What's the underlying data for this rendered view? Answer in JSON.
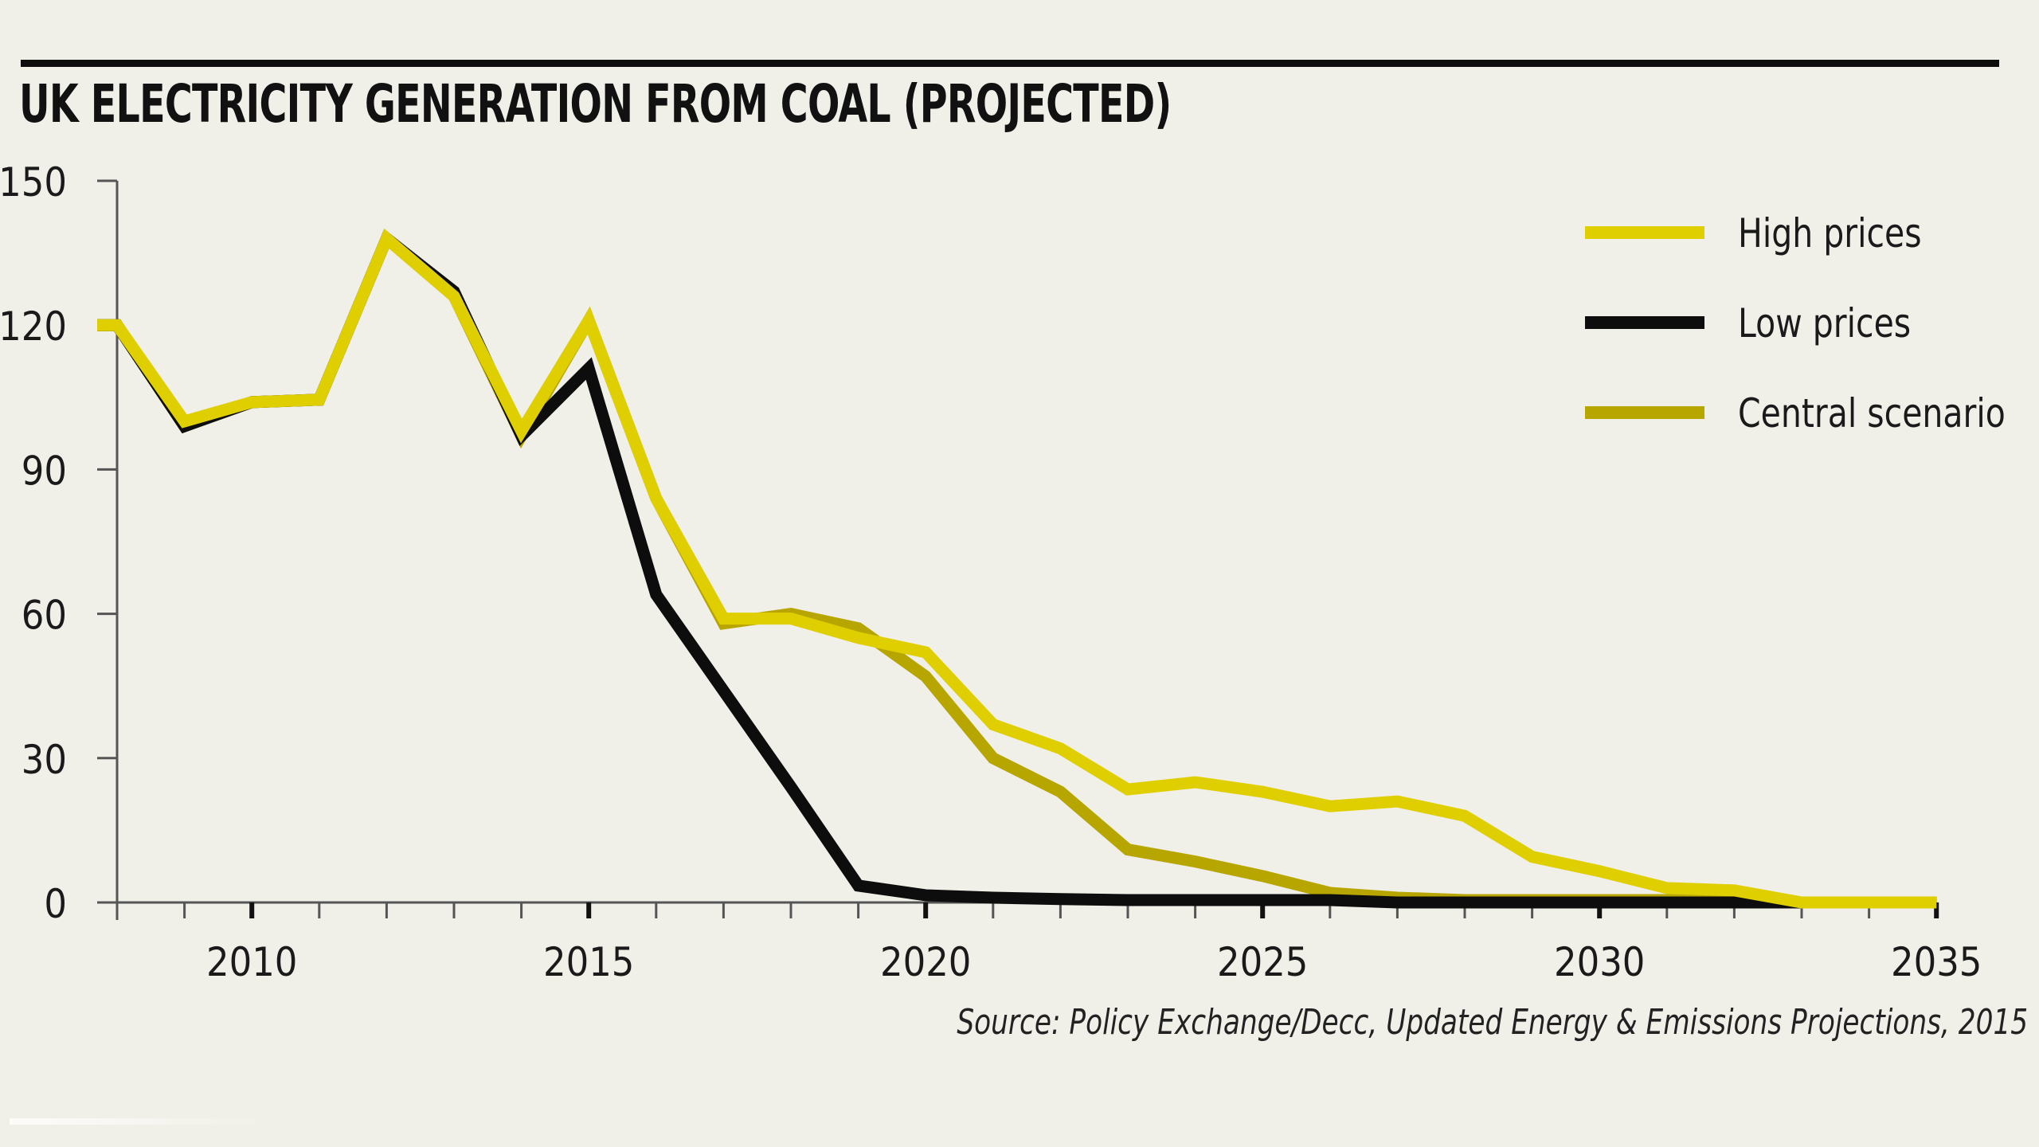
{
  "title": "UK ELECTRICITY GENERATION FROM COAL (PROJECTED)",
  "source": "Source: Policy Exchange/Decc, Updated Energy & Emissions Projections, 2015",
  "colors": {
    "background": "#f0efe8",
    "high_prices": "#e0cf00",
    "low_prices": "#0d0d0d",
    "central_scenario": "#b8a600",
    "axis": "#555555"
  },
  "chart_data": {
    "type": "line",
    "title": "UK ELECTRICITY GENERATION FROM COAL (PROJECTED)",
    "xlabel": "",
    "ylabel": "",
    "xlim": [
      2008,
      2035
    ],
    "ylim": [
      0,
      150
    ],
    "grid": false,
    "legend_position": "top-right",
    "x": [
      2008,
      2009,
      2010,
      2011,
      2012,
      2013,
      2014,
      2015,
      2016,
      2017,
      2018,
      2019,
      2020,
      2021,
      2022,
      2023,
      2024,
      2025,
      2026,
      2027,
      2028,
      2029,
      2030,
      2031,
      2032,
      2033,
      2034,
      2035
    ],
    "x_tick_labels": [
      "2010",
      "2015",
      "2020",
      "2025",
      "2030",
      "2035"
    ],
    "x_tick_values": [
      2010,
      2015,
      2020,
      2025,
      2030,
      2035
    ],
    "y_tick_labels": [
      "0",
      "30",
      "60",
      "90",
      "120",
      "150"
    ],
    "y_tick_values": [
      0,
      30,
      60,
      90,
      120,
      150
    ],
    "series": [
      {
        "name": "Central scenario",
        "key": "central_scenario",
        "values": [
          120,
          99,
          104,
          104.5,
          138,
          126,
          97,
          121,
          84,
          58,
          60,
          57,
          47,
          30,
          23,
          11,
          8.5,
          5.5,
          2,
          1,
          0.5,
          0.5,
          0.5,
          0.5,
          0.5,
          0,
          0,
          0
        ]
      },
      {
        "name": "Low prices",
        "key": "low_prices",
        "values": [
          120,
          99,
          104,
          104.5,
          138,
          127,
          97,
          111,
          64,
          44,
          24,
          3.5,
          1.5,
          1,
          0.7,
          0.5,
          0.5,
          0.5,
          0.5,
          0,
          0,
          0,
          0,
          0,
          0,
          0,
          0,
          0
        ]
      },
      {
        "name": "High prices",
        "key": "high_prices",
        "values": [
          120,
          100,
          104,
          104.5,
          138,
          126,
          98,
          121,
          84,
          59,
          59,
          55,
          52,
          37,
          32,
          23.5,
          25,
          23,
          20,
          21,
          18,
          9.5,
          6.5,
          3,
          2.5,
          0,
          0,
          0
        ]
      }
    ],
    "legend": [
      {
        "label": "High prices",
        "key": "high_prices"
      },
      {
        "label": "Low prices",
        "key": "low_prices"
      },
      {
        "label": "Central scenario",
        "key": "central_scenario"
      }
    ]
  }
}
